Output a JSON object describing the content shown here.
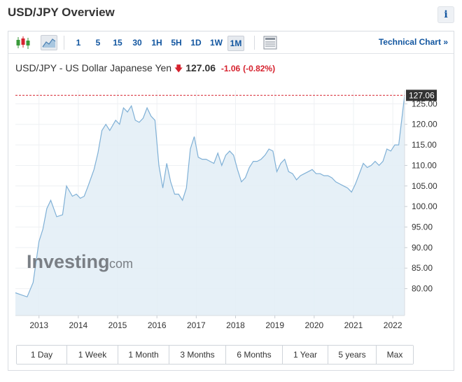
{
  "widget": {
    "title": "USD/JPY Overview",
    "info_label": "i"
  },
  "toolbar": {
    "timeframes": [
      "1",
      "5",
      "15",
      "30",
      "1H",
      "5H",
      "1D",
      "1W",
      "1M"
    ],
    "active_timeframe": "1M",
    "technical_chart_label": "Technical Chart",
    "technical_chart_chevron": "»"
  },
  "quote": {
    "name": "USD/JPY - US Dollar Japanese Yen",
    "direction_icon": "arrow-down-icon",
    "price": "127.06",
    "change": "-1.06",
    "change_pct": "(-0.82%)"
  },
  "colors": {
    "accent": "#1256a0",
    "negative": "#d6222e",
    "line": "#7fb0d6",
    "area": "#e2edf6",
    "price_label_bg": "#333333"
  },
  "watermark": {
    "brand": "Investing",
    "suffix": ".com"
  },
  "chart_data": {
    "type": "area",
    "title": "",
    "xlabel": "",
    "ylabel": "",
    "x_ticks": [
      "2013",
      "2014",
      "2015",
      "2016",
      "2017",
      "2018",
      "2019",
      "2020",
      "2021",
      "2022"
    ],
    "y_ticks": [
      "80.00",
      "85.00",
      "90.00",
      "95.00",
      "100.00",
      "105.00",
      "110.00",
      "115.00",
      "120.00",
      "125.00"
    ],
    "ylim": [
      75.5,
      128.3
    ],
    "xlim": [
      2012.4,
      2022.3
    ],
    "current_price_label": "127.06",
    "grid": true,
    "series": [
      {
        "name": "USD/JPY",
        "x": [
          2012.4,
          2012.55,
          2012.7,
          2012.85,
          2013.0,
          2013.1,
          2013.2,
          2013.3,
          2013.45,
          2013.6,
          2013.7,
          2013.85,
          2013.95,
          2014.05,
          2014.15,
          2014.25,
          2014.4,
          2014.5,
          2014.6,
          2014.7,
          2014.8,
          2014.95,
          2015.05,
          2015.15,
          2015.25,
          2015.35,
          2015.45,
          2015.55,
          2015.65,
          2015.75,
          2015.85,
          2015.95,
          2016.05,
          2016.15,
          2016.25,
          2016.35,
          2016.45,
          2016.55,
          2016.65,
          2016.75,
          2016.85,
          2016.95,
          2017.05,
          2017.15,
          2017.25,
          2017.35,
          2017.45,
          2017.55,
          2017.65,
          2017.75,
          2017.85,
          2017.95,
          2018.05,
          2018.15,
          2018.25,
          2018.35,
          2018.45,
          2018.55,
          2018.65,
          2018.75,
          2018.85,
          2018.95,
          2019.05,
          2019.15,
          2019.25,
          2019.35,
          2019.45,
          2019.55,
          2019.65,
          2019.75,
          2019.85,
          2019.95,
          2020.05,
          2020.15,
          2020.25,
          2020.35,
          2020.45,
          2020.55,
          2020.65,
          2020.75,
          2020.85,
          2020.95,
          2021.05,
          2021.15,
          2021.25,
          2021.35,
          2021.45,
          2021.55,
          2021.65,
          2021.75,
          2021.85,
          2021.95,
          2022.05,
          2022.15,
          2022.3
        ],
        "values": [
          79.0,
          78.5,
          78.0,
          81.5,
          91.5,
          94.5,
          99.5,
          101.5,
          97.5,
          98.0,
          105.0,
          102.5,
          103.0,
          102.0,
          102.5,
          105.0,
          109.0,
          113.0,
          118.5,
          120.0,
          118.5,
          121.0,
          120.0,
          124.0,
          123.0,
          124.5,
          121.0,
          120.5,
          121.5,
          124.0,
          122.0,
          121.0,
          110.0,
          104.5,
          110.5,
          106.0,
          103.0,
          103.0,
          101.5,
          104.5,
          114.0,
          117.0,
          112.0,
          111.5,
          111.5,
          111.0,
          110.5,
          113.0,
          110.0,
          112.5,
          113.5,
          112.5,
          109.0,
          106.0,
          107.0,
          109.5,
          111.0,
          111.0,
          111.5,
          112.5,
          114.0,
          113.5,
          108.5,
          110.5,
          111.5,
          108.5,
          108.0,
          106.5,
          107.5,
          108.0,
          108.5,
          109.0,
          108.0,
          108.0,
          107.5,
          107.5,
          107.0,
          106.0,
          105.5,
          105.0,
          104.5,
          103.5,
          105.5,
          108.0,
          110.5,
          109.5,
          110.0,
          111.0,
          110.0,
          111.0,
          114.0,
          113.5,
          115.0,
          115.0,
          127.06
        ]
      }
    ]
  },
  "ranges": [
    "1 Day",
    "1 Week",
    "1 Month",
    "3 Months",
    "6 Months",
    "1 Year",
    "5 years",
    "Max"
  ]
}
